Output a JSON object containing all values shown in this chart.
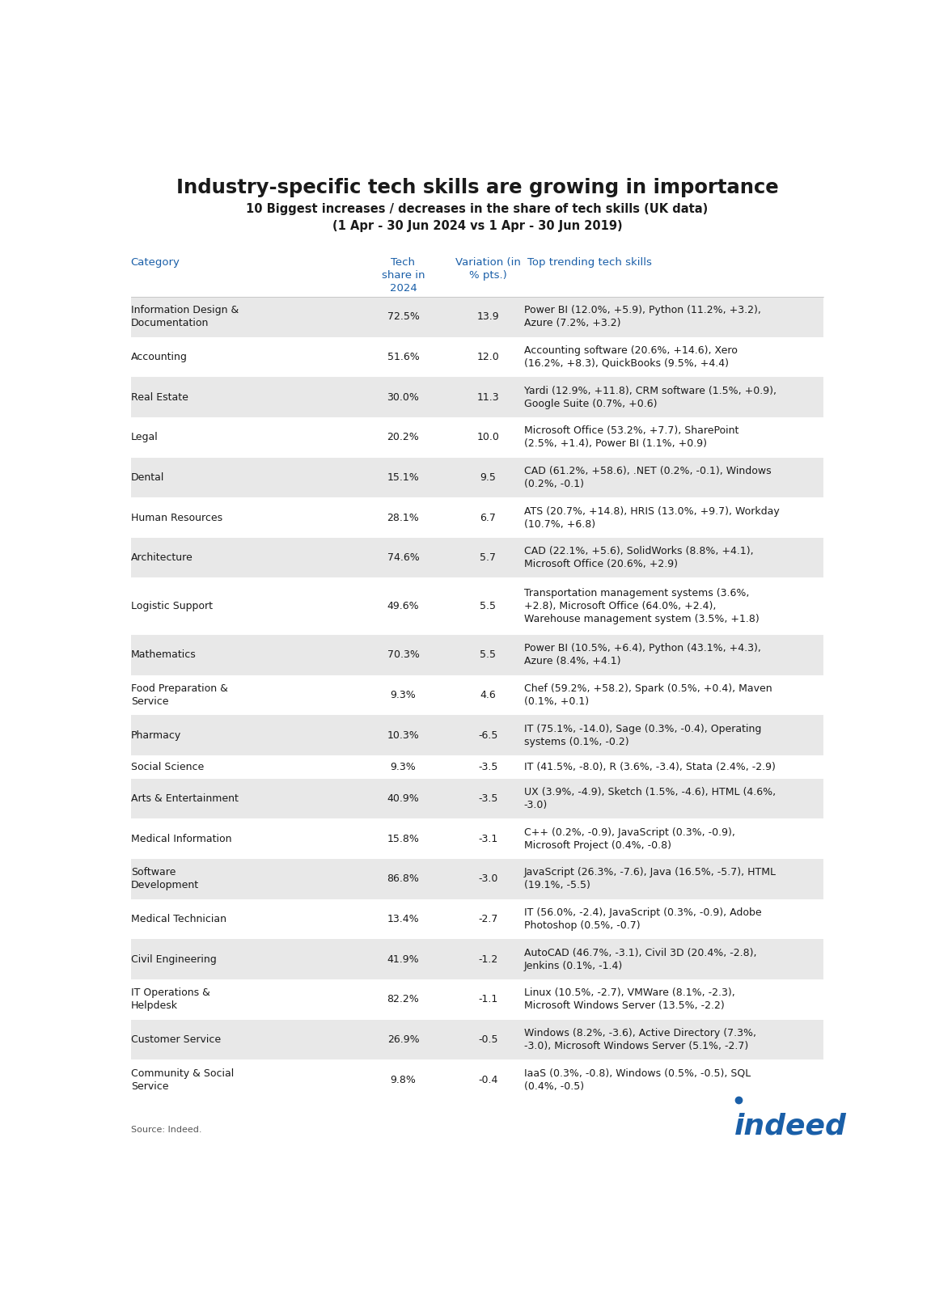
{
  "title": "Industry-specific tech skills are growing in importance",
  "subtitle": "10 Biggest increases / decreases in the share of tech skills (UK data)\n(1 Apr - 30 Jun 2024 vs 1 Apr - 30 Jun 2019)",
  "col_headers": [
    "Category",
    "Tech\nshare in\n2024",
    "Variation (in\n% pts.)",
    "Top trending tech skills"
  ],
  "source": "Source: Indeed.",
  "background_color": "#ffffff",
  "header_color": "#1a5fa8",
  "title_color": "#1a1a1a",
  "row_bg_even": "#e8e8e8",
  "row_bg_odd": "#ffffff",
  "rows": [
    {
      "category": "Information Design &\nDocumentation",
      "share": "72.5%",
      "variation": "13.9",
      "skills": "Power BI (12.0%, +5.9), Python (11.2%, +3.2),\nAzure (7.2%, +3.2)"
    },
    {
      "category": "Accounting",
      "share": "51.6%",
      "variation": "12.0",
      "skills": "Accounting software (20.6%, +14.6), Xero\n(16.2%, +8.3), QuickBooks (9.5%, +4.4)"
    },
    {
      "category": "Real Estate",
      "share": "30.0%",
      "variation": "11.3",
      "skills": "Yardi (12.9%, +11.8), CRM software (1.5%, +0.9),\nGoogle Suite (0.7%, +0.6)"
    },
    {
      "category": "Legal",
      "share": "20.2%",
      "variation": "10.0",
      "skills": "Microsoft Office (53.2%, +7.7), SharePoint\n(2.5%, +1.4), Power BI (1.1%, +0.9)"
    },
    {
      "category": "Dental",
      "share": "15.1%",
      "variation": "9.5",
      "skills": "CAD (61.2%, +58.6), .NET (0.2%, -0.1), Windows\n(0.2%, -0.1)"
    },
    {
      "category": "Human Resources",
      "share": "28.1%",
      "variation": "6.7",
      "skills": "ATS (20.7%, +14.8), HRIS (13.0%, +9.7), Workday\n(10.7%, +6.8)"
    },
    {
      "category": "Architecture",
      "share": "74.6%",
      "variation": "5.7",
      "skills": "CAD (22.1%, +5.6), SolidWorks (8.8%, +4.1),\nMicrosoft Office (20.6%, +2.9)"
    },
    {
      "category": "Logistic Support",
      "share": "49.6%",
      "variation": "5.5",
      "skills": "Transportation management systems (3.6%,\n+2.8), Microsoft Office (64.0%, +2.4),\nWarehouse management system (3.5%, +1.8)"
    },
    {
      "category": "Mathematics",
      "share": "70.3%",
      "variation": "5.5",
      "skills": "Power BI (10.5%, +6.4), Python (43.1%, +4.3),\nAzure (8.4%, +4.1)"
    },
    {
      "category": "Food Preparation &\nService",
      "share": "9.3%",
      "variation": "4.6",
      "skills": "Chef (59.2%, +58.2), Spark (0.5%, +0.4), Maven\n(0.1%, +0.1)"
    },
    {
      "category": "Pharmacy",
      "share": "10.3%",
      "variation": "-6.5",
      "skills": "IT (75.1%, -14.0), Sage (0.3%, -0.4), Operating\nsystems (0.1%, -0.2)"
    },
    {
      "category": "Social Science",
      "share": "9.3%",
      "variation": "-3.5",
      "skills": "IT (41.5%, -8.0), R (3.6%, -3.4), Stata (2.4%, -2.9)"
    },
    {
      "category": "Arts & Entertainment",
      "share": "40.9%",
      "variation": "-3.5",
      "skills": "UX (3.9%, -4.9), Sketch (1.5%, -4.6), HTML (4.6%,\n-3.0)"
    },
    {
      "category": "Medical Information",
      "share": "15.8%",
      "variation": "-3.1",
      "skills": "C++ (0.2%, -0.9), JavaScript (0.3%, -0.9),\nMicrosoft Project (0.4%, -0.8)"
    },
    {
      "category": "Software\nDevelopment",
      "share": "86.8%",
      "variation": "-3.0",
      "skills": "JavaScript (26.3%, -7.6), Java (16.5%, -5.7), HTML\n(19.1%, -5.5)"
    },
    {
      "category": "Medical Technician",
      "share": "13.4%",
      "variation": "-2.7",
      "skills": "IT (56.0%, -2.4), JavaScript (0.3%, -0.9), Adobe\nPhotoshop (0.5%, -0.7)"
    },
    {
      "category": "Civil Engineering",
      "share": "41.9%",
      "variation": "-1.2",
      "skills": "AutoCAD (46.7%, -3.1), Civil 3D (20.4%, -2.8),\nJenkins (0.1%, -1.4)"
    },
    {
      "category": "IT Operations &\nHelpdesk",
      "share": "82.2%",
      "variation": "-1.1",
      "skills": "Linux (10.5%, -2.7), VMWare (8.1%, -2.3),\nMicrosoft Windows Server (13.5%, -2.2)"
    },
    {
      "category": "Customer Service",
      "share": "26.9%",
      "variation": "-0.5",
      "skills": "Windows (8.2%, -3.6), Active Directory (7.3%,\n-3.0), Microsoft Windows Server (5.1%, -2.7)"
    },
    {
      "category": "Community & Social\nService",
      "share": "9.8%",
      "variation": "-0.4",
      "skills": "IaaS (0.3%, -0.8), Windows (0.5%, -0.5), SQL\n(0.4%, -0.5)"
    }
  ]
}
